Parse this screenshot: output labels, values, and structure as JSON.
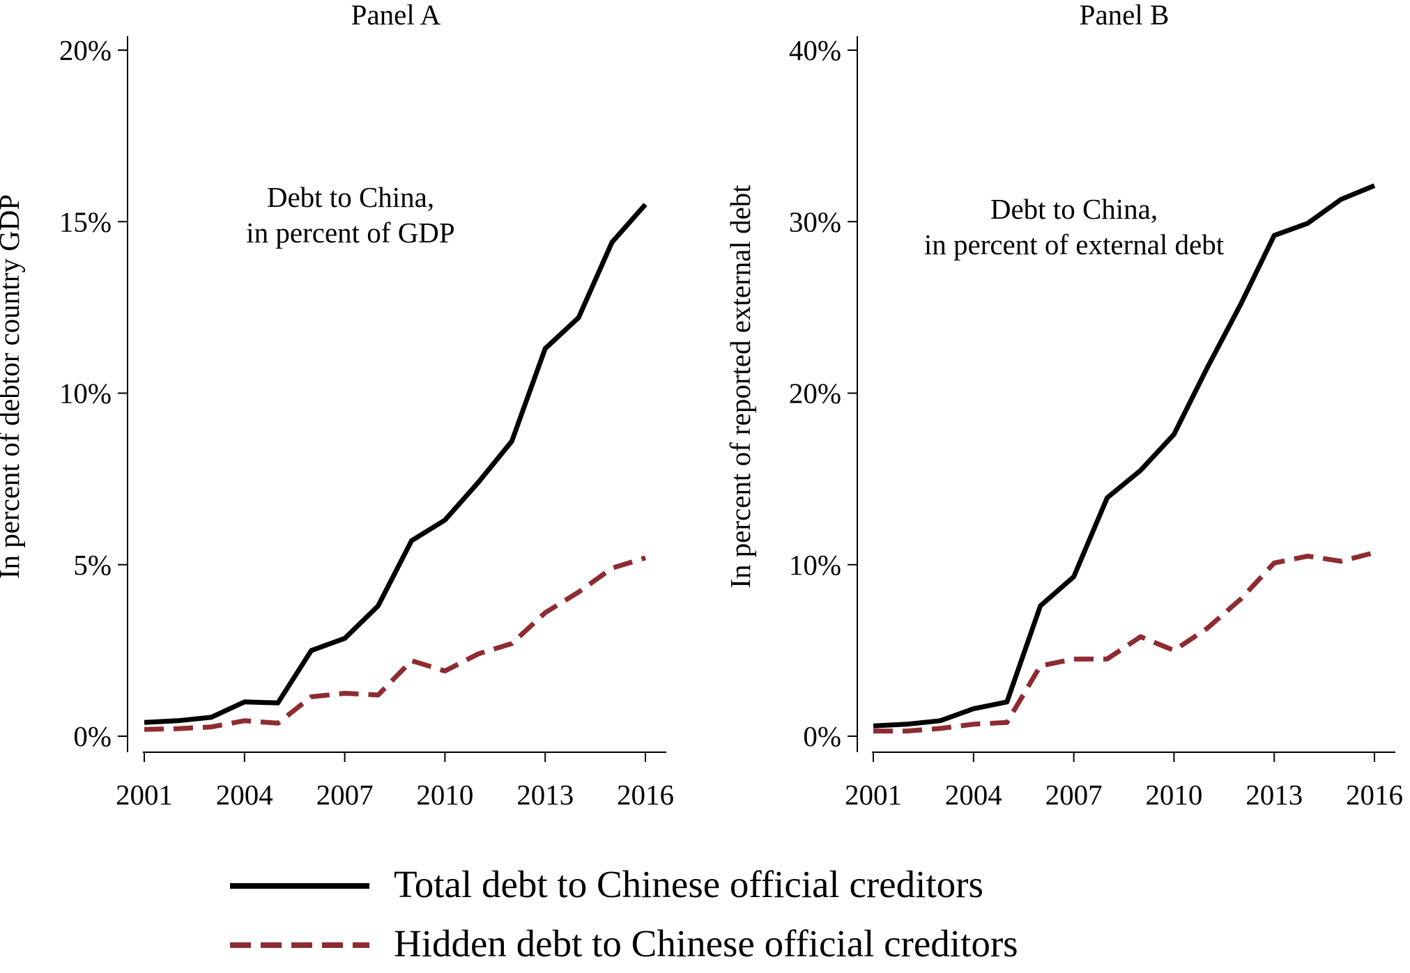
{
  "chart_data": [
    {
      "type": "line",
      "title": "Panel A",
      "annotation": [
        "Debt to China,",
        "in percent of GDP"
      ],
      "xlabel": "",
      "ylabel": "In percent of debtor country GDP",
      "xlim": [
        2001,
        2016
      ],
      "ylim": [
        0,
        20
      ],
      "x_ticks": [
        2001,
        2004,
        2007,
        2010,
        2013,
        2016
      ],
      "y_ticks": [
        0,
        5,
        10,
        15,
        20
      ],
      "y_tick_labels": [
        "0%",
        "5%",
        "10%",
        "15%",
        "20%"
      ],
      "x": [
        2001,
        2002,
        2003,
        2004,
        2005,
        2006,
        2007,
        2008,
        2009,
        2010,
        2011,
        2012,
        2013,
        2014,
        2015,
        2016
      ],
      "series": [
        {
          "name": "Total debt to Chinese official creditors",
          "color": "#000000",
          "dash": false,
          "values": [
            0.4,
            0.45,
            0.55,
            1.0,
            0.97,
            2.5,
            2.85,
            3.8,
            5.7,
            6.3,
            7.4,
            8.6,
            11.3,
            12.2,
            14.4,
            15.5
          ]
        },
        {
          "name": "Hidden debt to Chinese official creditors",
          "color": "#8e2c31",
          "dash": true,
          "values": [
            0.2,
            0.22,
            0.27,
            0.45,
            0.38,
            1.15,
            1.25,
            1.2,
            2.2,
            1.9,
            2.4,
            2.7,
            3.6,
            4.2,
            4.9,
            5.2
          ]
        }
      ],
      "grid": false
    },
    {
      "type": "line",
      "title": "Panel B",
      "annotation": [
        "Debt to China,",
        "in percent of external debt"
      ],
      "xlabel": "",
      "ylabel": "In percent of reported external debt",
      "xlim": [
        2001,
        2016
      ],
      "ylim": [
        0,
        40
      ],
      "x_ticks": [
        2001,
        2004,
        2007,
        2010,
        2013,
        2016
      ],
      "y_ticks": [
        0,
        10,
        20,
        30,
        40
      ],
      "y_tick_labels": [
        "0%",
        "10%",
        "20%",
        "30%",
        "40%"
      ],
      "x": [
        2001,
        2002,
        2003,
        2004,
        2005,
        2006,
        2007,
        2008,
        2009,
        2010,
        2011,
        2012,
        2013,
        2014,
        2015,
        2016
      ],
      "series": [
        {
          "name": "Total debt to Chinese official creditors",
          "color": "#000000",
          "dash": false,
          "values": [
            0.6,
            0.7,
            0.9,
            1.6,
            2.0,
            7.6,
            9.3,
            13.9,
            15.5,
            17.6,
            21.5,
            25.2,
            29.2,
            29.9,
            31.3,
            32.1
          ]
        },
        {
          "name": "Hidden debt to Chinese official creditors",
          "color": "#8e2c31",
          "dash": true,
          "values": [
            0.3,
            0.3,
            0.45,
            0.7,
            0.8,
            4.1,
            4.5,
            4.5,
            5.8,
            5.0,
            6.3,
            8.0,
            10.1,
            10.5,
            10.2,
            10.7
          ]
        }
      ],
      "grid": false
    }
  ],
  "legend": {
    "placement": "bottom",
    "items": [
      {
        "label": "Total debt to Chinese official creditors",
        "color": "#000000",
        "dash": false
      },
      {
        "label": "Hidden debt to Chinese official creditors",
        "color": "#8e2c31",
        "dash": true
      }
    ]
  }
}
